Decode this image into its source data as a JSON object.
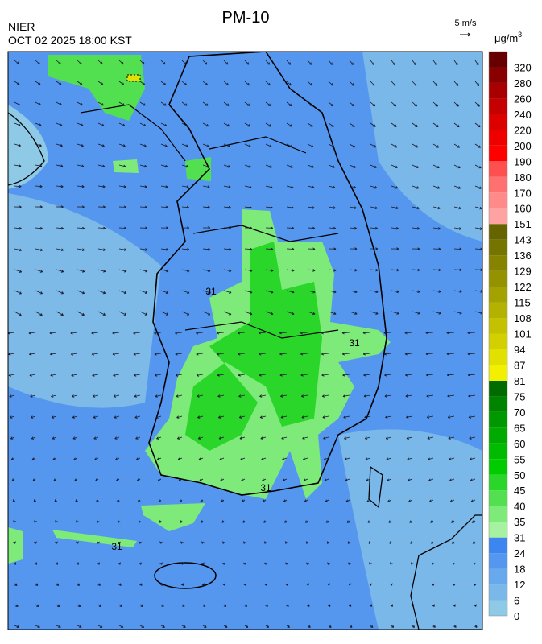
{
  "header": {
    "title": "PM-10",
    "agency": "NIER",
    "timestamp": "OCT 02 2025 18:00 KST",
    "wind_scale": "5 m/s"
  },
  "legend": {
    "unit": "μg/m",
    "unit_power": "3",
    "levels": [
      {
        "label": "0",
        "color": "#8ec9e6"
      },
      {
        "label": "6",
        "color": "#7ab8ea"
      },
      {
        "label": "12",
        "color": "#68a8ec"
      },
      {
        "label": "18",
        "color": "#5597ee"
      },
      {
        "label": "24",
        "color": "#3d86ef"
      },
      {
        "label": "31",
        "color": "#a6f2a0"
      },
      {
        "label": "35",
        "color": "#7eea7a"
      },
      {
        "label": "40",
        "color": "#52e050"
      },
      {
        "label": "45",
        "color": "#2ad62a"
      },
      {
        "label": "50",
        "color": "#00cc00"
      },
      {
        "label": "55",
        "color": "#00bb00"
      },
      {
        "label": "60",
        "color": "#00aa00"
      },
      {
        "label": "65",
        "color": "#009800"
      },
      {
        "label": "70",
        "color": "#008400"
      },
      {
        "label": "75",
        "color": "#006c00"
      },
      {
        "label": "81",
        "color": "#f2f000"
      },
      {
        "label": "87",
        "color": "#e2e000"
      },
      {
        "label": "94",
        "color": "#d2d000"
      },
      {
        "label": "101",
        "color": "#c4c200"
      },
      {
        "label": "108",
        "color": "#b4b200"
      },
      {
        "label": "115",
        "color": "#a4a200"
      },
      {
        "label": "122",
        "color": "#949200"
      },
      {
        "label": "129",
        "color": "#858300"
      },
      {
        "label": "136",
        "color": "#767400"
      },
      {
        "label": "143",
        "color": "#666400"
      },
      {
        "label": "151",
        "color": "#ffa2a2"
      },
      {
        "label": "160",
        "color": "#ff8a8a"
      },
      {
        "label": "170",
        "color": "#ff7070"
      },
      {
        "label": "180",
        "color": "#ff5050"
      },
      {
        "label": "190",
        "color": "#ff0000"
      },
      {
        "label": "200",
        "color": "#ee0000"
      },
      {
        "label": "220",
        "color": "#dd0000"
      },
      {
        "label": "240",
        "color": "#c40000"
      },
      {
        "label": "260",
        "color": "#a80000"
      },
      {
        "label": "280",
        "color": "#880000"
      },
      {
        "label": "320",
        "color": "#660000"
      }
    ]
  },
  "map": {
    "contour_labels": [
      "31",
      "31",
      "31",
      "31"
    ]
  }
}
